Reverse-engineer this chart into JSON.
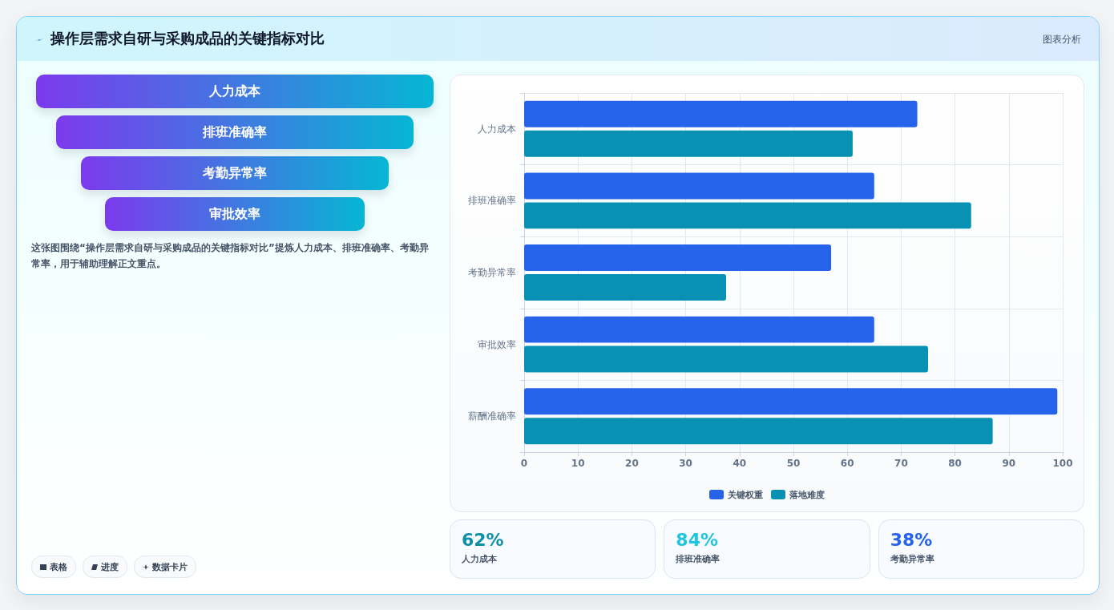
{
  "chart_data": [
    {
      "type": "other",
      "title": "操作层需求自研与采购成品的关键指标对比",
      "categories": [
        "人力成本",
        "排班准确率",
        "考勤异常率",
        "审批效率"
      ],
      "annotations": [
        "图表分析",
        "这张图围绕“操作层需求自研与采购成品的关键指标对比”提炼人力成本、排班准确率、考勤异常率，用于辅助理解正文重点。",
        "表格",
        "进度",
        "数据卡片"
      ]
    },
    {
      "type": "bar",
      "orientation": "horizontal",
      "categories": [
        "人力成本",
        "排班准确率",
        "考勤异常率",
        "审批效率",
        "薪酬准确率"
      ],
      "series": [
        {
          "name": "关键权重",
          "color": "#2563eb",
          "values": [
            73,
            65,
            57,
            65,
            99
          ]
        },
        {
          "name": "落地难度",
          "color": "#0891b2",
          "values": [
            61,
            83,
            37.5,
            75,
            87
          ]
        }
      ],
      "xlim": [
        0,
        100
      ],
      "xticks": [
        0,
        10,
        20,
        30,
        40,
        50,
        60,
        70,
        80,
        90,
        100
      ],
      "grid": true,
      "legend": "bottom"
    },
    {
      "type": "other",
      "categories": [
        "人力成本",
        "排班准确率",
        "考勤异常率"
      ],
      "value_labels": [
        "62%",
        "84%",
        "38%"
      ]
    }
  ]
}
